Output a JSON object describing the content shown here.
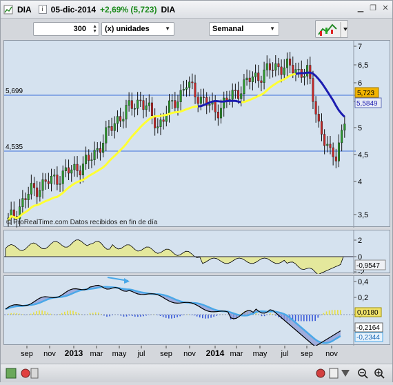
{
  "titlebar": {
    "symbol": "DIA",
    "info": "i",
    "date": "05-dic-2014",
    "change": "+2,69% (5,723)",
    "symbol2": "DIA"
  },
  "toolbar": {
    "quantity": "300",
    "units": "(x) unidades",
    "period": "Semanal"
  },
  "price_panel": {
    "axis_ticks": [
      "7",
      "6,5",
      "6",
      "5,5",
      "5",
      "4,5",
      "4",
      "3,5"
    ],
    "line_labels": [
      "5,699",
      "4,535"
    ],
    "last_price": "5,723",
    "ma_value": "5,5849",
    "watermark": "© ProRealTime.com  Datos recibidos en fin de día"
  },
  "osc1_panel": {
    "axis_ticks": [
      "2",
      "0",
      "-2"
    ],
    "value": "-0,9547"
  },
  "osc2_panel": {
    "axis_ticks": [
      "0,4",
      "0,2",
      "0",
      "-0,2"
    ],
    "value_hist": "0,0180",
    "value_a": "-0,2164",
    "value_b": "-0,2344"
  },
  "time_axis": [
    "sep",
    "nov",
    "2013",
    "mar",
    "may",
    "jul",
    "sep",
    "nov",
    "2014",
    "mar",
    "may",
    "jul",
    "sep",
    "nov"
  ],
  "colors": {
    "ma_short": "#ffff33",
    "ma_long": "#1c1cb0",
    "histogram_area": "#e4e89c",
    "negative_area": "#7d8cc6",
    "macd_line": "#000000",
    "signal_line": "#4aa8e8",
    "bar_pos": "#e8e040",
    "bar_neg": "#3a5ad8"
  },
  "icons": [
    "window-icon",
    "info-icon",
    "minimize-icon",
    "restore-icon",
    "close-icon",
    "spinner-icon",
    "chart-style-icon",
    "side-tool-icon",
    "bottom-tool-icons",
    "zoom-out-icon",
    "zoom-in-icon"
  ]
}
